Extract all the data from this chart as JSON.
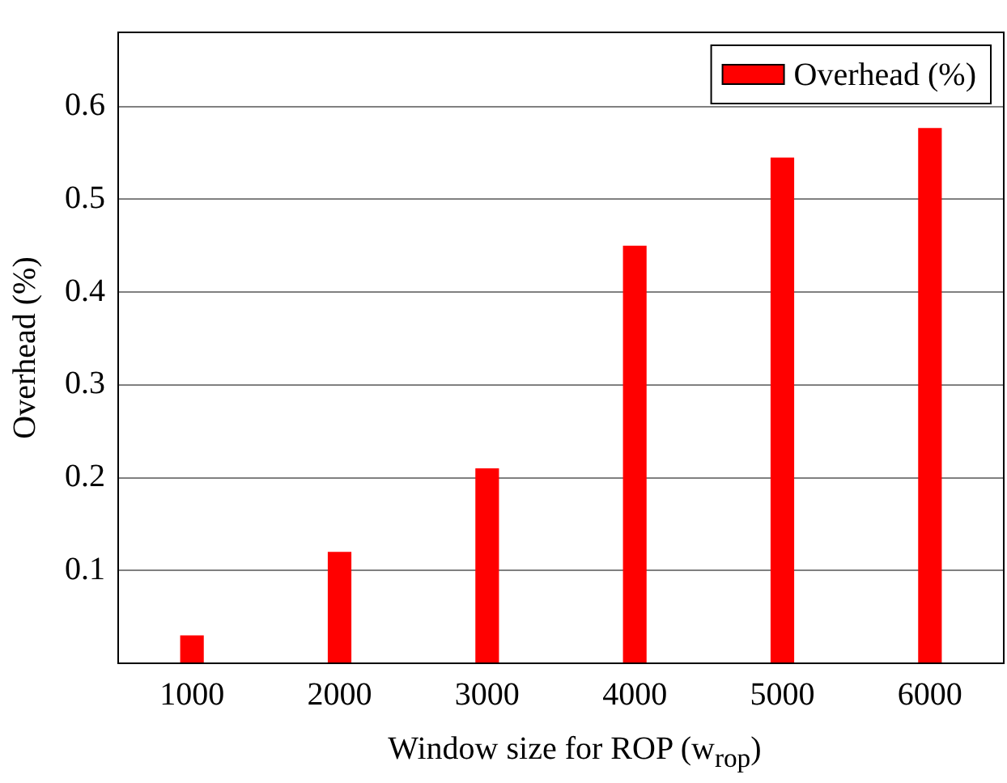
{
  "chart_data": {
    "type": "bar",
    "xlabel": "Window size for ROP (w$_{rop}$)",
    "ylabel": "Overhead (%)",
    "categories": [
      "1000",
      "2000",
      "3000",
      "4000",
      "5000",
      "6000"
    ],
    "series": [
      {
        "name": "Overhead (%)",
        "color": "#ff0000",
        "values": [
          0.03,
          0.12,
          0.21,
          0.45,
          0.545,
          0.577
        ]
      }
    ],
    "ylim": [
      0,
      0.68
    ],
    "yticks": [
      0.1,
      0.2,
      0.3,
      0.4,
      0.5,
      0.6
    ],
    "grid": "y",
    "legend": "top right"
  }
}
